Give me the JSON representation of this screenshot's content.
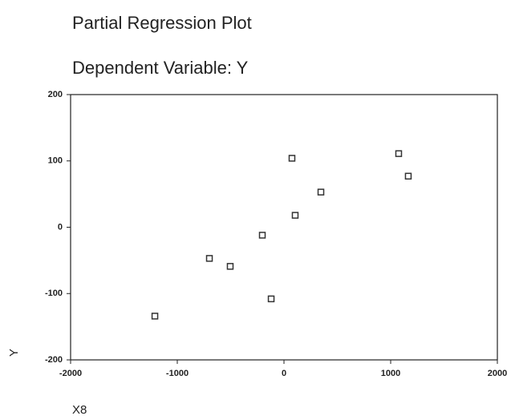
{
  "chart_data": {
    "type": "scatter",
    "title": "Partial Regression Plot",
    "subtitle": "Dependent Variable: Y",
    "x_label": "X8",
    "y_label": "Y",
    "x": [
      75,
      1075,
      1165,
      346,
      105,
      -203,
      -699,
      -504,
      -120,
      -1210
    ],
    "values": [
      104,
      111,
      77,
      53,
      18,
      -12,
      -47,
      -59,
      -108,
      -134
    ],
    "color": "#333333",
    "xlim": [
      -2000,
      2000
    ],
    "xticks": [
      -2000,
      -1000,
      0,
      1000,
      2000
    ],
    "ylim": [
      -200,
      200
    ],
    "yticks": [
      -200,
      -100,
      0,
      100,
      200
    ]
  }
}
